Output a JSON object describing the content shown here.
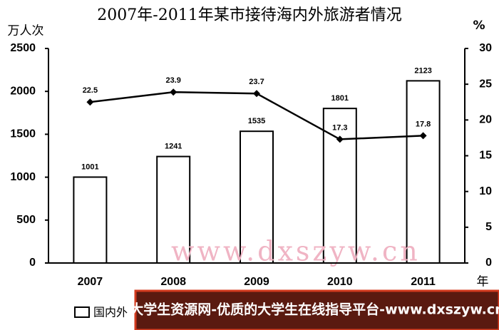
{
  "chart_data": {
    "type": "combo",
    "title": "2007年-2011年某市接待海内外旅游者情况",
    "y_label": "万人次",
    "y2_label": "%",
    "x_label": "年",
    "categories": [
      "2007",
      "2008",
      "2009",
      "2010",
      "2011"
    ],
    "series": [
      {
        "name": "国内外",
        "type": "bar",
        "color": "#ffffff",
        "values": [
          1001,
          1241,
          1535,
          1801,
          2123
        ]
      },
      {
        "type": "line",
        "axis": "y2",
        "color": "#000000",
        "values": [
          22.5,
          23.9,
          23.7,
          17.3,
          17.8
        ]
      }
    ],
    "ylim": [
      0,
      2500
    ],
    "yticks": [
      0,
      500,
      1000,
      1500,
      2000,
      2500
    ],
    "y2lim": [
      0,
      30
    ],
    "y2ticks": [
      0,
      5,
      10,
      15,
      20,
      25,
      30
    ]
  },
  "overlay": {
    "watermark": "www.dxszyw.cn",
    "banner": "大学生资源网-优质的大学生在线指导平台-www.dxszyw.cn"
  }
}
